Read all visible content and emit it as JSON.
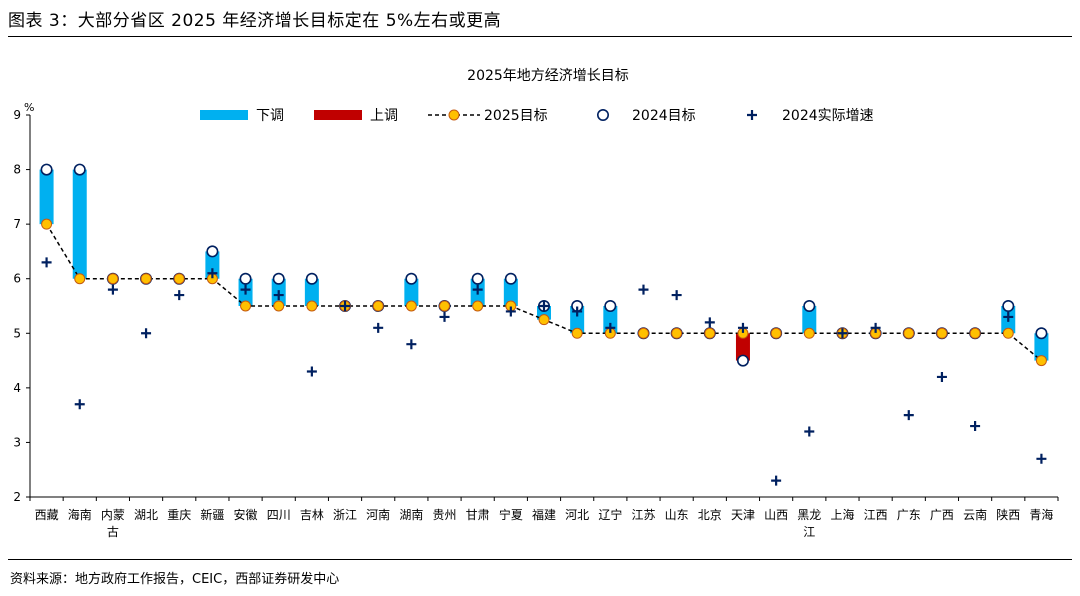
{
  "figure": {
    "title": "图表 3：大部分省区 2025 年经济增长目标定在 5%左右或更高",
    "source": "资料来源：地方政府工作报告，CEIC，西部证券研发中心"
  },
  "chart_data": {
    "type": "line",
    "title": "2025年地方经济增长目标",
    "ylabel": "%",
    "ylim": [
      2,
      9
    ],
    "yticks": [
      "2",
      "3",
      "4",
      "5",
      "6",
      "7",
      "8",
      "9"
    ],
    "grid": false,
    "legend_position": "top",
    "legend": [
      {
        "key": "down",
        "label": "下调",
        "color": "#00B0F0"
      },
      {
        "key": "up",
        "label": "上调",
        "color": "#C00000"
      },
      {
        "key": "target2025",
        "label": "2025目标",
        "color": "#FFC000"
      },
      {
        "key": "target2024",
        "label": "2024目标",
        "color": "#002060"
      },
      {
        "key": "actual2024",
        "label": "2024实际增速",
        "color": "#002060"
      }
    ],
    "categories": [
      "西藏",
      "海南",
      "内蒙古",
      "湖北",
      "重庆",
      "新疆",
      "安徽",
      "四川",
      "吉林",
      "浙江",
      "河南",
      "湖南",
      "贵州",
      "甘肃",
      "宁夏",
      "福建",
      "河北",
      "辽宁",
      "江苏",
      "山东",
      "北京",
      "天津",
      "山西",
      "黑龙江",
      "上海",
      "江西",
      "广东",
      "广西",
      "云南",
      "陕西",
      "青海"
    ],
    "series": [
      {
        "name": "2025目标",
        "values": [
          7,
          6,
          6,
          6,
          6,
          6,
          5.5,
          5.5,
          5.5,
          5.5,
          5.5,
          5.5,
          5.5,
          5.5,
          5.5,
          5.25,
          5,
          5,
          5,
          5,
          5,
          5,
          5,
          5,
          5,
          5,
          5,
          5,
          5,
          5,
          4.5
        ]
      },
      {
        "name": "2024目标",
        "values": [
          8,
          8,
          6,
          6,
          6,
          6.5,
          6,
          6,
          6,
          5.5,
          5.5,
          6,
          5.5,
          6,
          6,
          5.5,
          5.5,
          5.5,
          5,
          5,
          5,
          4.5,
          5,
          5.5,
          5,
          5,
          5,
          5,
          5,
          5.5,
          5
        ]
      },
      {
        "name": "2024实际增速",
        "values": [
          6.3,
          3.7,
          5.8,
          5.0,
          5.7,
          6.1,
          5.8,
          5.7,
          4.3,
          5.5,
          5.1,
          4.8,
          5.3,
          5.8,
          5.4,
          5.5,
          5.4,
          5.1,
          5.8,
          5.7,
          5.2,
          5.1,
          2.3,
          3.2,
          5.0,
          5.1,
          3.5,
          4.2,
          3.3,
          5.3,
          2.7
        ]
      }
    ]
  }
}
